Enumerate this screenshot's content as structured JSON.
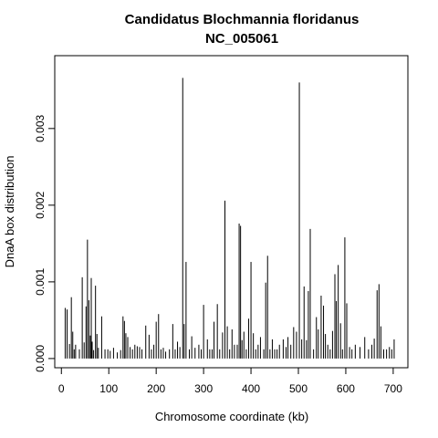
{
  "chart_data": {
    "type": "bar",
    "title": "Candidatus Blochmannia floridanus",
    "subtitle": "NC_005061",
    "xlabel": "Chromosome coordinate (kb)",
    "ylabel": "DnaA box distribution",
    "xlim": [
      -14,
      731
    ],
    "ylim": [
      -0.00012,
      0.00395
    ],
    "xticks": [
      0,
      100,
      200,
      300,
      400,
      500,
      600,
      700
    ],
    "yticks": [
      0.0,
      0.001,
      0.002,
      0.003
    ],
    "ytick_labels": [
      "0.000",
      "0.001",
      "0.002",
      "0.003"
    ],
    "grid": false,
    "legend": "none",
    "bar_color": "#000000",
    "x": [
      8,
      12,
      17,
      21,
      24,
      27,
      30,
      38,
      44,
      48,
      52,
      55,
      58,
      61,
      63,
      65,
      68,
      72,
      75,
      78,
      85,
      92,
      98,
      103,
      110,
      118,
      125,
      130,
      133,
      136,
      140,
      145,
      150,
      155,
      160,
      165,
      170,
      178,
      185,
      190,
      195,
      200,
      205,
      210,
      215,
      220,
      228,
      235,
      240,
      245,
      250,
      256,
      259,
      263,
      270,
      275,
      282,
      290,
      295,
      300,
      308,
      313,
      318,
      322,
      329,
      334,
      340,
      345,
      350,
      355,
      360,
      365,
      371,
      375,
      378,
      381,
      385,
      390,
      395,
      400,
      405,
      410,
      415,
      420,
      427,
      431,
      435,
      440,
      445,
      450,
      455,
      460,
      468,
      474,
      478,
      484,
      490,
      496,
      502,
      507,
      512,
      517,
      521,
      525,
      532,
      538,
      542,
      548,
      553,
      557,
      562,
      567,
      572,
      577,
      580,
      584,
      589,
      593,
      598,
      602,
      608,
      613,
      620,
      630,
      640,
      648,
      655,
      660,
      666,
      670,
      674,
      680,
      686,
      692,
      697,
      702
    ],
    "values": [
      0.00066,
      0.00064,
      0.00019,
      0.0008,
      0.00035,
      0.00012,
      0.00018,
      0.00012,
      0.00106,
      0.00021,
      0.00068,
      0.00155,
      0.00076,
      0.0003,
      0.00105,
      0.00022,
      0.00011,
      0.00095,
      0.00032,
      0.00014,
      0.00055,
      0.00012,
      0.00012,
      0.0001,
      0.00014,
      8e-05,
      0.00011,
      0.00055,
      0.00049,
      0.00033,
      0.00028,
      0.00015,
      0.00012,
      0.00018,
      0.00016,
      0.00015,
      0.00012,
      0.00043,
      0.00031,
      0.00012,
      0.00018,
      0.00048,
      0.00058,
      0.00012,
      0.00014,
      9e-05,
      0.00012,
      0.00045,
      0.00012,
      0.00022,
      0.00015,
      0.00366,
      0.00045,
      0.00126,
      0.00012,
      0.00029,
      0.00014,
      0.00018,
      0.00012,
      0.0007,
      0.00025,
      0.00012,
      0.00012,
      0.00048,
      0.00071,
      0.00012,
      0.00034,
      0.00206,
      0.00042,
      0.00012,
      0.00038,
      0.00018,
      0.00018,
      0.00176,
      0.00173,
      0.00024,
      0.00035,
      0.00012,
      0.00052,
      0.00126,
      0.00033,
      0.00012,
      0.00018,
      0.00028,
      0.00012,
      0.00099,
      0.00134,
      0.00012,
      0.00025,
      0.00012,
      0.00012,
      0.00018,
      0.00025,
      0.00015,
      0.00028,
      0.00018,
      0.00041,
      0.00035,
      0.0036,
      0.00025,
      0.00094,
      0.00024,
      0.00088,
      0.00169,
      0.00012,
      0.00054,
      0.00038,
      0.00082,
      0.00069,
      0.00032,
      0.00018,
      0.00012,
      0.00036,
      0.0011,
      0.00075,
      0.00122,
      0.00046,
      0.00012,
      0.00158,
      0.00072,
      0.00015,
      0.00012,
      0.00018,
      0.00015,
      0.00028,
      0.00012,
      0.00018,
      0.00026,
      0.00089,
      0.00097,
      0.00042,
      0.00012,
      0.00012,
      0.00015,
      0.00012,
      0.00025
    ]
  }
}
